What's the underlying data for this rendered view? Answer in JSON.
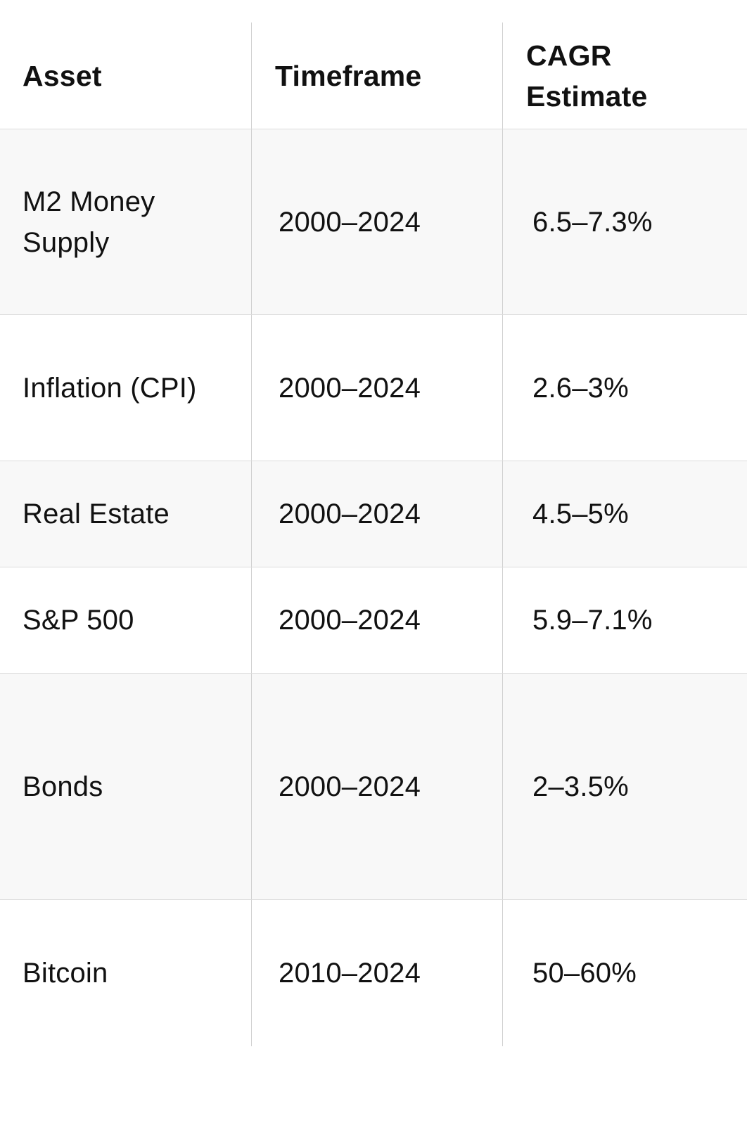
{
  "table": {
    "headers": [
      "Asset",
      "Timeframe",
      "CAGR\nEstimate"
    ],
    "header_cagr_line1": "CAGR",
    "header_cagr_line2": "Estimate",
    "rows": [
      {
        "asset_line1": "M2 Money",
        "asset_line2": "Supply",
        "timeframe": "2000–2024",
        "cagr": "6.5–7.3%"
      },
      {
        "asset_line1": "Inflation (CPI)",
        "asset_line2": "",
        "timeframe": "2000–2024",
        "cagr": "2.6–3%"
      },
      {
        "asset_line1": "Real Estate",
        "asset_line2": "",
        "timeframe": "2000–2024",
        "cagr": "4.5–5%"
      },
      {
        "asset_line1": "S&P 500",
        "asset_line2": "",
        "timeframe": "2000–2024",
        "cagr": "5.9–7.1%"
      },
      {
        "asset_line1": "Bonds",
        "asset_line2": "",
        "timeframe": "2000–2024",
        "cagr": "2–3.5%"
      },
      {
        "asset_line1": "Bitcoin",
        "asset_line2": "",
        "timeframe": "2010–2024",
        "cagr": "50–60%"
      }
    ]
  },
  "colors": {
    "text": "#111111",
    "shaded_row": "#f8f8f8",
    "border": "#dcdcdc"
  }
}
